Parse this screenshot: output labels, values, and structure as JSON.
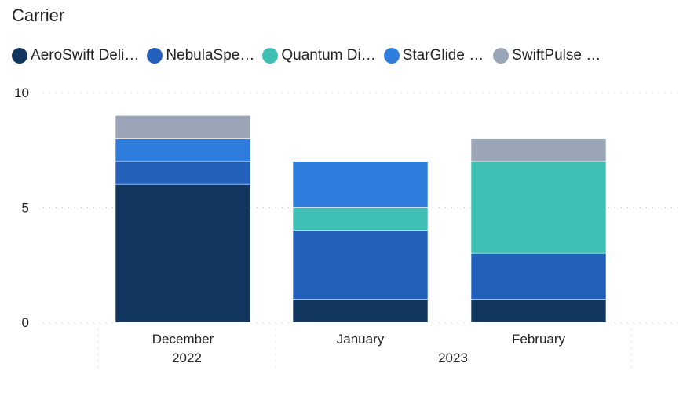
{
  "chart_data": {
    "type": "bar",
    "stacked": true,
    "legend_title": "Carrier",
    "legend_position": "top-left",
    "categories": [
      "December",
      "January",
      "February"
    ],
    "category_groups": [
      {
        "label": "2022",
        "categories": [
          "December"
        ]
      },
      {
        "label": "2023",
        "categories": [
          "January",
          "February"
        ]
      }
    ],
    "series": [
      {
        "name": "AeroSwift Deli…",
        "color": "#12375F",
        "values": [
          6,
          1,
          1
        ]
      },
      {
        "name": "NebulaSpe…",
        "color": "#2360BA",
        "values": [
          1,
          3,
          2
        ]
      },
      {
        "name": "Quantum Di…",
        "color": "#3FBFB4",
        "values": [
          0,
          1,
          4
        ]
      },
      {
        "name": "StarGlide …",
        "color": "#2E7CDC",
        "values": [
          1,
          2,
          0
        ]
      },
      {
        "name": "SwiftPulse …",
        "color": "#9AA6B8",
        "values": [
          1,
          0,
          1
        ]
      }
    ],
    "yticks": [
      "0",
      "5",
      "10"
    ],
    "ylim": [
      0,
      10
    ],
    "grid": true
  }
}
